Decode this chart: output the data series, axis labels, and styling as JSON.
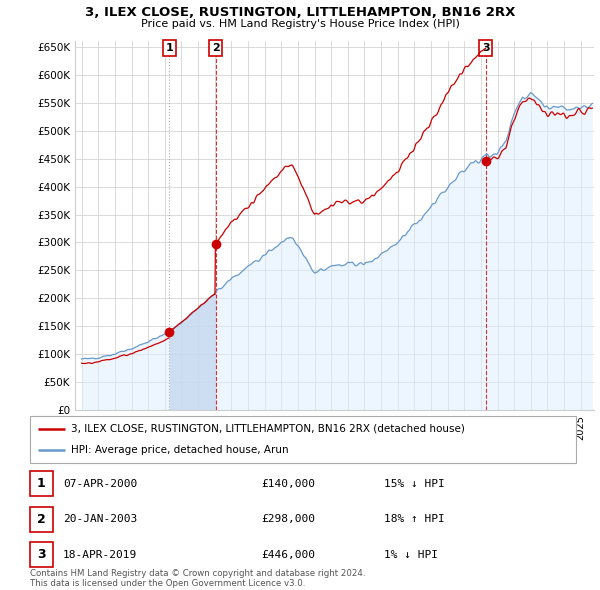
{
  "title": "3, ILEX CLOSE, RUSTINGTON, LITTLEHAMPTON, BN16 2RX",
  "subtitle": "Price paid vs. HM Land Registry's House Price Index (HPI)",
  "ylim": [
    0,
    660000
  ],
  "yticks": [
    0,
    50000,
    100000,
    150000,
    200000,
    250000,
    300000,
    350000,
    400000,
    450000,
    500000,
    550000,
    600000,
    650000
  ],
  "ytick_labels": [
    "£0",
    "£50K",
    "£100K",
    "£150K",
    "£200K",
    "£250K",
    "£300K",
    "£350K",
    "£400K",
    "£450K",
    "£500K",
    "£550K",
    "£600K",
    "£650K"
  ],
  "sales": [
    {
      "date": 2000.27,
      "price": 140000,
      "label": "1"
    },
    {
      "date": 2003.05,
      "price": 298000,
      "label": "2"
    },
    {
      "date": 2019.29,
      "price": 446000,
      "label": "3"
    }
  ],
  "sale_line_color": "#cc0000",
  "hpi_line_color": "#6699cc",
  "hpi_fill_color": "#ddeeff",
  "grid_color": "#cccccc",
  "background_color": "#ffffff",
  "table_rows": [
    {
      "num": "1",
      "date": "07-APR-2000",
      "price": "£140,000",
      "hpi": "15% ↓ HPI"
    },
    {
      "num": "2",
      "date": "20-JAN-2003",
      "price": "£298,000",
      "hpi": "18% ↑ HPI"
    },
    {
      "num": "3",
      "date": "18-APR-2019",
      "price": "£446,000",
      "hpi": "1% ↓ HPI"
    }
  ],
  "legend_line1": "3, ILEX CLOSE, RUSTINGTON, LITTLEHAMPTON, BN16 2RX (detached house)",
  "legend_line2": "HPI: Average price, detached house, Arun",
  "footnote1": "Contains HM Land Registry data © Crown copyright and database right 2024.",
  "footnote2": "This data is licensed under the Open Government Licence v3.0.",
  "sale_box_color": "#cc0000",
  "xlim_left": 1994.6,
  "xlim_right": 2025.8
}
